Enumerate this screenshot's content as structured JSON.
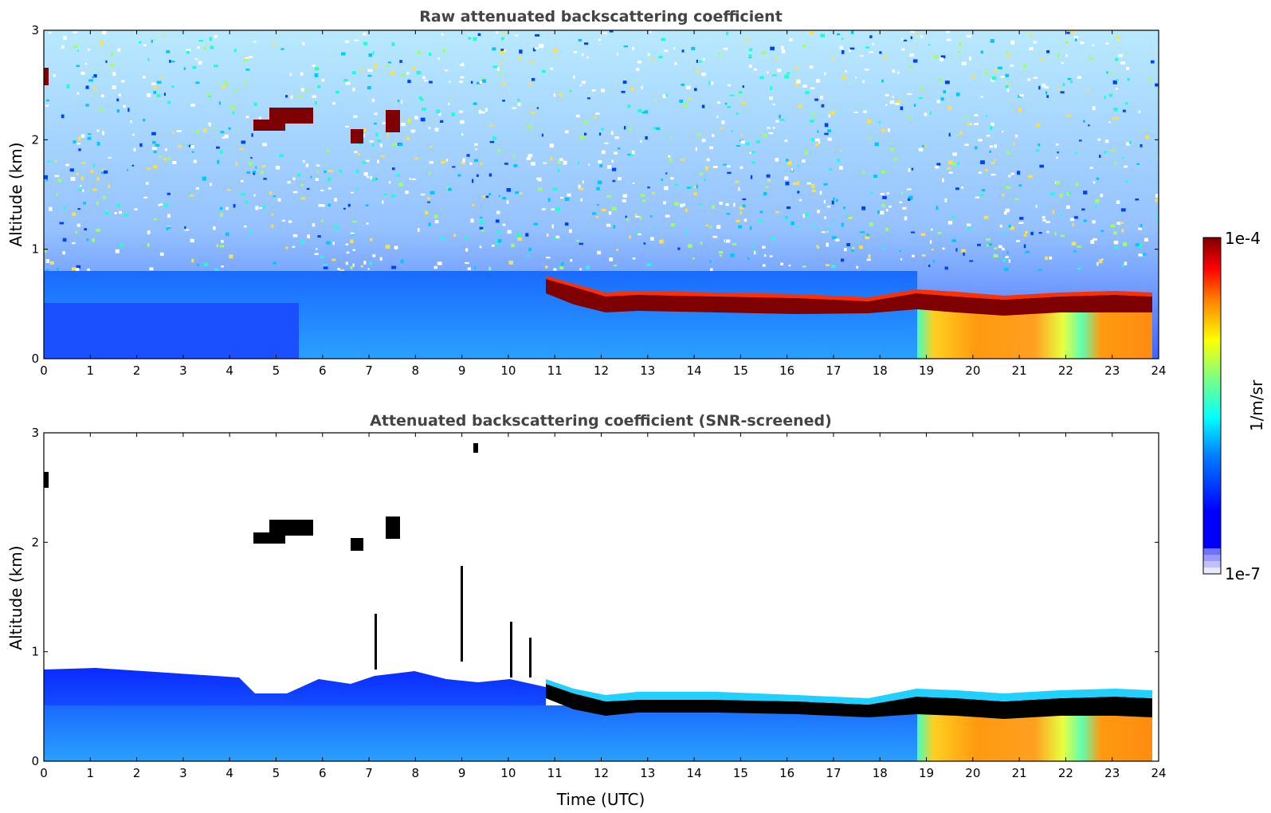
{
  "chart_data": [
    {
      "type": "heatmap",
      "title": "Raw attenuated backscattering coefficient",
      "xlabel": "",
      "ylabel": "Altitude (km)",
      "xlim": [
        0,
        24
      ],
      "ylim": [
        0,
        3
      ],
      "xticks": [
        "0",
        "1",
        "2",
        "3",
        "4",
        "5",
        "6",
        "7",
        "8",
        "9",
        "10",
        "11",
        "12",
        "13",
        "14",
        "15",
        "16",
        "17",
        "18",
        "19",
        "20",
        "21",
        "22",
        "23",
        "24"
      ],
      "yticks": [
        "0",
        "1",
        "2",
        "3"
      ],
      "grid": false,
      "colormap": "jet",
      "color_scale": "log",
      "features": [
        {
          "label": "boundary layer aerosol",
          "x": [
            0,
            18.8
          ],
          "y": [
            0,
            0.5
          ],
          "level": "low (~1e-6)"
        },
        {
          "label": "elevated aerosol/fog",
          "x": [
            18.8,
            23.8
          ],
          "y": [
            0,
            0.4
          ],
          "level": "high (~1e-5)"
        },
        {
          "label": "stratocumulus cloud top layer",
          "x": [
            10.6,
            23.8
          ],
          "y_center": [
            0.72,
            0.55
          ],
          "level": "max (1e-4)"
        },
        {
          "label": "cloud patches",
          "x": [
            4.6,
            7.8
          ],
          "y": [
            2.0,
            2.3
          ],
          "level": "max (1e-4)"
        },
        {
          "label": "noisy background",
          "x": [
            0,
            23.8
          ],
          "y": [
            0.6,
            3.0
          ],
          "level": "noise"
        }
      ]
    },
    {
      "type": "heatmap",
      "title": "Attenuated backscattering coefficient (SNR-screened)",
      "xlabel": "Time (UTC)",
      "ylabel": "Altitude (km)",
      "xlim": [
        0,
        24
      ],
      "ylim": [
        0,
        3
      ],
      "xticks": [
        "0",
        "1",
        "2",
        "3",
        "4",
        "5",
        "6",
        "7",
        "8",
        "9",
        "10",
        "11",
        "12",
        "13",
        "14",
        "15",
        "16",
        "17",
        "18",
        "19",
        "20",
        "21",
        "22",
        "23",
        "24"
      ],
      "yticks": [
        "0",
        "1",
        "2",
        "3"
      ],
      "grid": false,
      "colormap": "jet",
      "color_scale": "log",
      "features": [
        {
          "label": "boundary layer aerosol",
          "x": [
            0,
            18.8
          ],
          "y": [
            0,
            0.8
          ],
          "level": "low (~1e-6)"
        },
        {
          "label": "elevated aerosol/fog",
          "x": [
            18.8,
            23.8
          ],
          "y": [
            0,
            0.4
          ],
          "level": "high (~1e-5)"
        },
        {
          "label": "cloud layer (saturated)",
          "x": [
            10.6,
            23.8
          ],
          "y_center": [
            0.72,
            0.5
          ],
          "level": "above max"
        },
        {
          "label": "cloud patches",
          "x": [
            4.6,
            7.8
          ],
          "y": [
            2.0,
            2.3
          ],
          "level": "above max"
        }
      ]
    }
  ],
  "colorbar": {
    "max_label": "1e-4",
    "min_label": "1e-7",
    "unit_label": "1/m/sr",
    "colors": [
      "#00007f",
      "#0000ff",
      "#0080ff",
      "#00ffff",
      "#80ff80",
      "#ffff00",
      "#ff8000",
      "#ff0000",
      "#7f0000"
    ],
    "low_colors": [
      "#e8e8ff",
      "#c0c0ff",
      "#9898ff",
      "#7070ff"
    ]
  }
}
